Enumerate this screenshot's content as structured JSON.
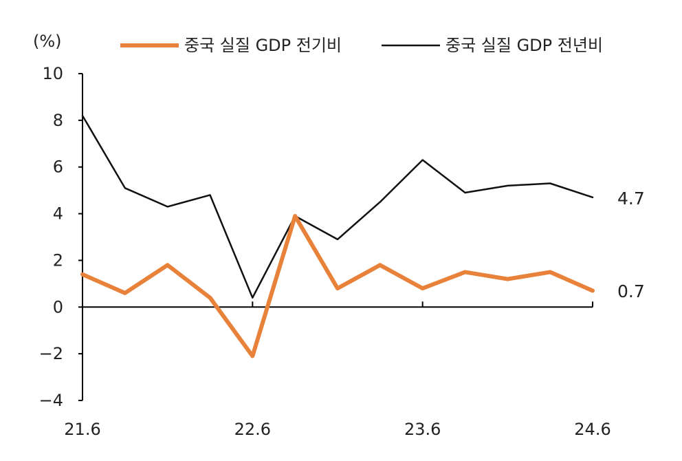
{
  "chart_data": {
    "type": "line",
    "unit_label": "(%)",
    "x": [
      "21.6",
      "21.9",
      "21.12",
      "22.3",
      "22.6",
      "22.9",
      "22.12",
      "23.3",
      "23.6",
      "23.9",
      "23.12",
      "24.3",
      "24.6"
    ],
    "xticks": [
      "21.6",
      "22.6",
      "23.6",
      "24.6"
    ],
    "ylim": [
      -4,
      10
    ],
    "yticks": [
      10,
      8,
      6,
      4,
      2,
      0,
      -2,
      -4
    ],
    "series": [
      {
        "name": "중국 실질 GDP 전기비",
        "color": "#E8823A",
        "values": [
          1.4,
          0.6,
          1.8,
          0.4,
          -2.1,
          3.9,
          0.8,
          1.8,
          0.8,
          1.5,
          1.2,
          1.5,
          0.7
        ]
      },
      {
        "name": "중국 실질 GDP 전년비",
        "color": "#111111",
        "values": [
          8.2,
          5.1,
          4.3,
          4.8,
          0.4,
          3.9,
          2.9,
          4.5,
          6.3,
          4.9,
          5.2,
          5.3,
          4.7
        ]
      }
    ],
    "end_labels": [
      "4.7",
      "0.7"
    ],
    "grid": false,
    "legend_position": "top"
  }
}
